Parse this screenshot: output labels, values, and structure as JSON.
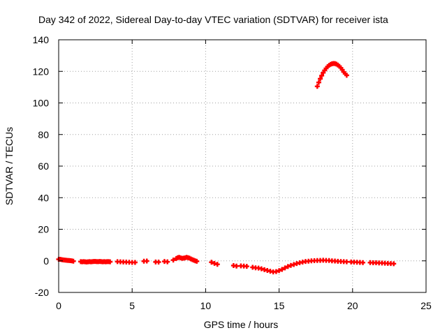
{
  "chart_data": {
    "type": "scatter",
    "title": "Day 342 of 2022, Sidereal Day-to-day VTEC variation (SDTVAR) for receiver ista",
    "xlabel": "GPS time / hours",
    "ylabel": "SDTVAR / TECUs",
    "xlim": [
      0,
      25
    ],
    "ylim": [
      -20,
      140
    ],
    "xticks": [
      0,
      5,
      10,
      15,
      20,
      25
    ],
    "yticks": [
      -20,
      0,
      20,
      40,
      60,
      80,
      100,
      120,
      140
    ],
    "grid": true,
    "marker": "plus",
    "series": [
      {
        "name": "SDTVAR",
        "color": "#ff0000",
        "points": [
          [
            0.0,
            1.0
          ],
          [
            0.1,
            1.0
          ],
          [
            0.2,
            0.8
          ],
          [
            0.3,
            0.6
          ],
          [
            0.4,
            0.5
          ],
          [
            0.5,
            0.4
          ],
          [
            0.6,
            0.3
          ],
          [
            0.7,
            0.2
          ],
          [
            0.8,
            0.1
          ],
          [
            0.9,
            0.0
          ],
          [
            1.0,
            -0.2
          ],
          [
            1.5,
            -0.5
          ],
          [
            1.6,
            -0.6
          ],
          [
            1.7,
            -0.5
          ],
          [
            1.8,
            -0.6
          ],
          [
            1.9,
            -0.7
          ],
          [
            2.0,
            -0.6
          ],
          [
            2.1,
            -0.5
          ],
          [
            2.2,
            -0.6
          ],
          [
            2.3,
            -0.5
          ],
          [
            2.4,
            -0.4
          ],
          [
            2.5,
            -0.4
          ],
          [
            2.6,
            -0.5
          ],
          [
            2.7,
            -0.5
          ],
          [
            2.8,
            -0.4
          ],
          [
            2.9,
            -0.5
          ],
          [
            3.0,
            -0.6
          ],
          [
            3.1,
            -0.5
          ],
          [
            3.2,
            -0.6
          ],
          [
            3.3,
            -0.5
          ],
          [
            3.4,
            -0.5
          ],
          [
            3.5,
            -0.6
          ],
          [
            4.0,
            -0.5
          ],
          [
            4.2,
            -0.6
          ],
          [
            4.4,
            -0.7
          ],
          [
            4.6,
            -0.8
          ],
          [
            4.8,
            -0.9
          ],
          [
            5.0,
            -1.0
          ],
          [
            5.2,
            -1.0
          ],
          [
            5.8,
            -0.2
          ],
          [
            6.0,
            -0.1
          ],
          [
            6.6,
            -0.7
          ],
          [
            6.8,
            -0.8
          ],
          [
            7.2,
            -0.4
          ],
          [
            7.4,
            -0.6
          ],
          [
            7.8,
            0.5
          ],
          [
            8.0,
            1.5
          ],
          [
            8.1,
            2.0
          ],
          [
            8.2,
            2.2
          ],
          [
            8.3,
            1.9
          ],
          [
            8.4,
            1.6
          ],
          [
            8.5,
            1.7
          ],
          [
            8.6,
            1.9
          ],
          [
            8.7,
            2.2
          ],
          [
            8.8,
            2.0
          ],
          [
            8.9,
            1.7
          ],
          [
            9.0,
            1.2
          ],
          [
            9.1,
            0.8
          ],
          [
            9.2,
            0.4
          ],
          [
            9.3,
            0.0
          ],
          [
            9.4,
            -0.3
          ],
          [
            10.4,
            -0.9
          ],
          [
            10.6,
            -1.6
          ],
          [
            10.8,
            -2.2
          ],
          [
            11.9,
            -3.0
          ],
          [
            12.1,
            -3.3
          ],
          [
            12.4,
            -3.2
          ],
          [
            12.6,
            -3.3
          ],
          [
            12.8,
            -3.5
          ],
          [
            13.2,
            -4.1
          ],
          [
            13.4,
            -4.4
          ],
          [
            13.6,
            -4.6
          ],
          [
            13.8,
            -5.0
          ],
          [
            14.0,
            -5.6
          ],
          [
            14.2,
            -6.1
          ],
          [
            14.4,
            -6.6
          ],
          [
            14.6,
            -7.0
          ],
          [
            14.8,
            -6.8
          ],
          [
            15.0,
            -6.2
          ],
          [
            15.2,
            -5.4
          ],
          [
            15.4,
            -4.5
          ],
          [
            15.6,
            -3.6
          ],
          [
            15.8,
            -2.9
          ],
          [
            16.0,
            -2.3
          ],
          [
            16.2,
            -1.7
          ],
          [
            16.4,
            -1.2
          ],
          [
            16.6,
            -0.8
          ],
          [
            16.8,
            -0.4
          ],
          [
            17.0,
            -0.2
          ],
          [
            17.2,
            0.0
          ],
          [
            17.4,
            0.1
          ],
          [
            17.6,
            0.2
          ],
          [
            17.8,
            0.3
          ],
          [
            18.0,
            0.4
          ],
          [
            18.2,
            0.3
          ],
          [
            18.4,
            0.2
          ],
          [
            18.6,
            0.0
          ],
          [
            18.8,
            -0.1
          ],
          [
            19.0,
            -0.3
          ],
          [
            19.2,
            -0.4
          ],
          [
            19.4,
            -0.5
          ],
          [
            19.6,
            -0.6
          ],
          [
            19.9,
            -0.7
          ],
          [
            20.1,
            -0.8
          ],
          [
            20.3,
            -0.9
          ],
          [
            20.5,
            -1.0
          ],
          [
            20.7,
            -1.1
          ],
          [
            21.2,
            -1.1
          ],
          [
            21.4,
            -1.2
          ],
          [
            21.6,
            -1.2
          ],
          [
            21.8,
            -1.3
          ],
          [
            22.0,
            -1.4
          ],
          [
            22.2,
            -1.5
          ],
          [
            22.4,
            -1.6
          ],
          [
            22.6,
            -1.7
          ],
          [
            22.8,
            -1.8
          ],
          [
            17.6,
            110.5
          ],
          [
            17.7,
            113.0
          ],
          [
            17.8,
            115.3
          ],
          [
            17.9,
            117.3
          ],
          [
            18.0,
            119.1
          ],
          [
            18.1,
            120.6
          ],
          [
            18.2,
            121.9
          ],
          [
            18.3,
            123.0
          ],
          [
            18.4,
            123.8
          ],
          [
            18.5,
            124.4
          ],
          [
            18.6,
            124.8
          ],
          [
            18.7,
            125.0
          ],
          [
            18.8,
            124.9
          ],
          [
            18.9,
            124.6
          ],
          [
            19.0,
            124.0
          ],
          [
            19.1,
            123.2
          ],
          [
            19.2,
            122.2
          ],
          [
            19.3,
            121.0
          ],
          [
            19.4,
            119.6
          ],
          [
            19.5,
            118.5
          ],
          [
            19.6,
            117.5
          ]
        ]
      }
    ]
  }
}
